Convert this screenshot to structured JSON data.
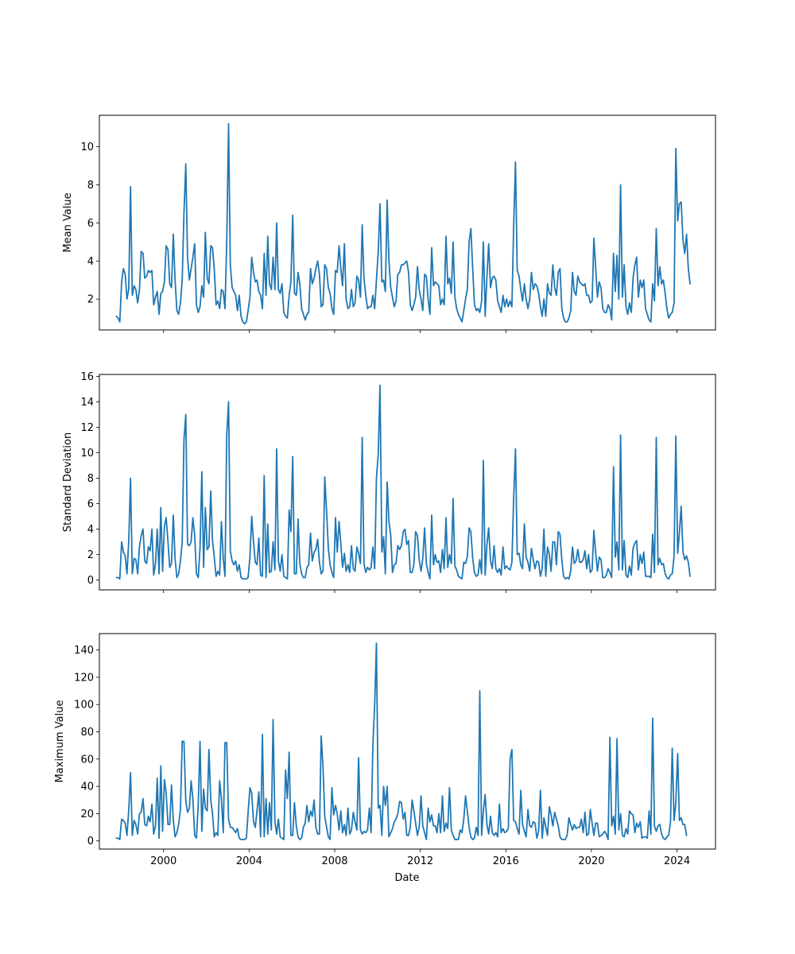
{
  "figure": {
    "xlabel": "Date",
    "x_tick_labels": [
      "2000",
      "2004",
      "2008",
      "2012",
      "2016",
      "2020",
      "2024"
    ],
    "line_color": "#1f77b4"
  },
  "chart_data": [
    {
      "type": "line",
      "ylabel": "Mean Value",
      "ylim": [
        0.38,
        11.65
      ],
      "yticks": [
        2,
        4,
        6,
        8,
        10
      ],
      "xlim": [
        1997.0,
        2025.8
      ],
      "x_tick_values": [
        2000,
        2004,
        2008,
        2012,
        2016,
        2020,
        2024
      ],
      "grid": false,
      "x_start": 1997.79,
      "x_step": 0.0833,
      "values": [
        1.1,
        1.0,
        0.8,
        2.9,
        3.6,
        3.3,
        2.0,
        2.5,
        7.9,
        2.2,
        2.7,
        2.5,
        1.8,
        2.5,
        4.5,
        4.4,
        3.1,
        3.2,
        3.5,
        3.4,
        3.5,
        1.7,
        2.1,
        2.4,
        1.2,
        2.3,
        2.4,
        2.9,
        4.8,
        4.6,
        2.8,
        2.6,
        5.4,
        3.0,
        1.4,
        1.2,
        1.8,
        3.0,
        6.5,
        9.1,
        4.2,
        3.0,
        3.6,
        4.2,
        4.9,
        1.7,
        1.3,
        1.6,
        2.7,
        2.1,
        5.5,
        3.1,
        2.8,
        4.8,
        4.7,
        3.6,
        1.7,
        1.9,
        1.5,
        2.5,
        2.4,
        1.5,
        5.0,
        11.2,
        3.8,
        2.6,
        2.4,
        2.2,
        1.4,
        2.2,
        1.1,
        0.8,
        0.7,
        0.8,
        1.4,
        2.1,
        4.2,
        3.4,
        2.9,
        3.0,
        2.4,
        2.2,
        1.5,
        4.4,
        2.2,
        5.3,
        2.8,
        2.5,
        4.2,
        2.5,
        6.0,
        2.5,
        2.3,
        2.8,
        1.3,
        1.1,
        1.0,
        2.2,
        2.9,
        6.4,
        2.3,
        2.2,
        3.4,
        2.8,
        1.5,
        1.2,
        0.9,
        1.2,
        1.3,
        3.6,
        2.8,
        3.1,
        3.6,
        4.0,
        3.3,
        1.6,
        1.7,
        3.8,
        3.6,
        2.6,
        2.3,
        1.5,
        1.2,
        3.5,
        3.4,
        4.8,
        3.6,
        2.7,
        4.9,
        2.0,
        1.5,
        1.6,
        2.5,
        1.6,
        1.8,
        3.2,
        3.0,
        2.1,
        5.9,
        3.1,
        2.2,
        1.5,
        1.6,
        1.6,
        2.2,
        1.5,
        3.0,
        4.5,
        7.0,
        2.9,
        3.0,
        2.4,
        7.2,
        4.0,
        2.6,
        2.1,
        1.6,
        1.9,
        3.3,
        3.4,
        3.8,
        3.8,
        3.9,
        4.0,
        3.4,
        1.7,
        1.4,
        1.7,
        2.1,
        3.7,
        2.5,
        2.0,
        1.4,
        3.3,
        3.2,
        2.0,
        1.2,
        4.7,
        2.7,
        2.9,
        2.8,
        2.7,
        1.7,
        2.0,
        1.7,
        5.3,
        2.8,
        3.1,
        2.3,
        5.0,
        2.1,
        1.5,
        1.2,
        1.0,
        0.8,
        1.4,
        2.0,
        2.5,
        5.0,
        5.7,
        3.6,
        1.7,
        1.4,
        1.5,
        1.3,
        1.9,
        5.0,
        1.1,
        3.2,
        4.9,
        2.6,
        3.1,
        3.2,
        3.0,
        1.9,
        1.6,
        1.3,
        2.2,
        1.6,
        2.0,
        1.6,
        1.9,
        1.6,
        5.8,
        9.2,
        3.5,
        3.2,
        2.5,
        1.9,
        2.8,
        2.0,
        1.5,
        2.0,
        3.4,
        2.5,
        2.8,
        2.7,
        2.3,
        1.6,
        1.1,
        2.0,
        1.1,
        2.8,
        2.3,
        2.2,
        3.8,
        2.6,
        2.2,
        3.4,
        3.6,
        1.5,
        1.0,
        0.8,
        0.8,
        1.0,
        1.4,
        3.4,
        2.4,
        2.2,
        3.2,
        2.9,
        2.8,
        2.7,
        2.8,
        2.2,
        2.2,
        1.8,
        1.9,
        5.2,
        3.7,
        2.1,
        2.9,
        2.6,
        1.5,
        1.3,
        1.3,
        1.7,
        1.5,
        0.9,
        4.4,
        2.4,
        4.3,
        2.0,
        8.0,
        2.1,
        3.8,
        1.6,
        1.2,
        1.8,
        1.3,
        3.1,
        3.8,
        4.2,
        2.1,
        3.0,
        2.6,
        3.0,
        1.5,
        1.2,
        0.9,
        0.8,
        2.8,
        1.9,
        5.7,
        2.7,
        3.7,
        2.8,
        3.0,
        2.3,
        1.5,
        1.0,
        1.2,
        1.3,
        1.8,
        9.9,
        6.1,
        7.0,
        7.1,
        5.1,
        4.4,
        5.4,
        3.6,
        2.8
      ]
    },
    {
      "type": "line",
      "ylabel": "Standard Deviation",
      "ylim": [
        -0.77,
        16.15
      ],
      "yticks": [
        0,
        2,
        4,
        6,
        8,
        10,
        12,
        14,
        16
      ],
      "xlim": [
        1997.0,
        2025.8
      ],
      "x_tick_values": [
        2000,
        2004,
        2008,
        2012,
        2016,
        2020,
        2024
      ],
      "grid": false,
      "x_start": 1997.79,
      "x_step": 0.0833,
      "values": [
        0.2,
        0.2,
        0.1,
        3.0,
        2.2,
        1.9,
        0.5,
        3.0,
        8.0,
        0.5,
        1.7,
        1.6,
        0.5,
        2.6,
        3.5,
        4.0,
        1.5,
        1.3,
        2.6,
        2.3,
        4.0,
        0.4,
        1.3,
        4.0,
        0.5,
        5.7,
        0.7,
        4.2,
        4.9,
        3.0,
        1.0,
        1.3,
        5.1,
        1.7,
        0.2,
        0.5,
        1.5,
        3.0,
        11.0,
        13.0,
        2.8,
        2.7,
        3.0,
        4.9,
        3.5,
        0.5,
        0.2,
        2.5,
        8.5,
        1.0,
        5.7,
        2.4,
        2.6,
        7.0,
        3.1,
        1.8,
        0.3,
        0.7,
        0.4,
        4.6,
        1.7,
        0.3,
        11.4,
        14.0,
        2.3,
        1.5,
        1.2,
        1.5,
        0.7,
        1.2,
        0.2,
        0.1,
        0.1,
        0.1,
        0.2,
        1.8,
        5.0,
        3.0,
        1.4,
        1.2,
        3.3,
        0.4,
        0.3,
        8.2,
        0.2,
        4.4,
        0.6,
        0.7,
        3.0,
        0.8,
        10.3,
        1.5,
        0.7,
        2.0,
        0.3,
        0.2,
        0.1,
        5.5,
        3.8,
        9.7,
        0.5,
        0.5,
        4.8,
        1.3,
        0.5,
        0.2,
        0.2,
        1.0,
        1.2,
        3.7,
        1.5,
        2.2,
        2.4,
        3.2,
        1.4,
        0.5,
        0.7,
        8.1,
        5.4,
        2.5,
        1.2,
        0.6,
        0.2,
        4.9,
        2.2,
        4.6,
        2.9,
        1.0,
        2.1,
        0.7,
        1.2,
        0.6,
        2.7,
        0.9,
        0.7,
        2.6,
        2.1,
        1.3,
        11.2,
        1.3,
        0.6,
        1.0,
        0.8,
        1.0,
        2.6,
        0.9,
        8.0,
        9.9,
        15.3,
        2.2,
        3.4,
        0.5,
        7.7,
        4.6,
        3.5,
        0.6,
        1.2,
        1.3,
        2.7,
        2.4,
        2.7,
        3.8,
        4.0,
        2.8,
        3.1,
        0.6,
        0.6,
        1.2,
        3.8,
        3.5,
        1.6,
        0.7,
        1.7,
        4.1,
        1.3,
        0.6,
        0.1,
        5.1,
        1.2,
        2.0,
        1.4,
        1.5,
        0.6,
        2.4,
        0.9,
        4.9,
        1.0,
        2.0,
        1.3,
        6.4,
        1.1,
        0.8,
        0.3,
        0.2,
        0.1,
        1.4,
        1.3,
        1.8,
        4.1,
        3.8,
        1.7,
        0.6,
        0.3,
        0.4,
        1.6,
        0.5,
        9.4,
        0.4,
        2.8,
        4.1,
        1.5,
        0.9,
        2.7,
        0.9,
        0.6,
        0.9,
        0.4,
        2.6,
        0.9,
        1.1,
        0.9,
        0.8,
        1.4,
        6.4,
        10.3,
        2.0,
        2.1,
        1.2,
        0.9,
        4.4,
        1.8,
        1.4,
        0.7,
        2.5,
        1.6,
        0.9,
        1.5,
        1.4,
        0.3,
        0.9,
        4.0,
        0.3,
        2.6,
        2.0,
        0.7,
        3.0,
        3.0,
        1.2,
        3.8,
        3.6,
        1.6,
        0.3,
        0.1,
        0.2,
        0.1,
        0.7,
        2.6,
        1.3,
        1.5,
        2.4,
        1.4,
        1.4,
        1.6,
        2.3,
        0.9,
        2.0,
        0.6,
        0.8,
        3.9,
        2.2,
        0.7,
        1.8,
        1.6,
        0.2,
        0.2,
        0.4,
        0.9,
        0.6,
        0.2,
        8.9,
        1.8,
        3.0,
        0.8,
        11.4,
        0.8,
        3.1,
        0.4,
        0.2,
        1.1,
        0.4,
        2.5,
        2.9,
        3.1,
        0.8,
        2.0,
        1.3,
        2.2,
        0.3,
        0.3,
        0.3,
        0.2,
        3.6,
        0.6,
        11.2,
        1.2,
        1.7,
        1.2,
        1.3,
        0.5,
        0.2,
        0.1,
        0.4,
        0.5,
        1.9,
        11.3,
        2.1,
        3.7,
        5.8,
        2.2,
        1.6,
        1.9,
        1.4,
        0.3
      ]
    },
    {
      "type": "line",
      "ylabel": "Maximum Value",
      "ylim": [
        -6.0,
        152.0
      ],
      "yticks": [
        0,
        20,
        40,
        60,
        80,
        100,
        120,
        140
      ],
      "xlim": [
        1997.0,
        2025.8
      ],
      "x_tick_values": [
        2000,
        2004,
        2008,
        2012,
        2016,
        2020,
        2024
      ],
      "grid": false,
      "x_start": 1997.79,
      "x_step": 0.0833,
      "values": [
        2,
        2,
        1,
        16,
        15,
        13,
        4,
        22,
        50,
        4,
        15,
        12,
        5,
        20,
        21,
        31,
        12,
        11,
        18,
        14,
        27,
        5,
        11,
        46,
        2,
        55,
        7,
        45,
        35,
        12,
        12,
        41,
        15,
        3,
        6,
        12,
        23,
        73,
        73,
        29,
        21,
        24,
        44,
        31,
        4,
        2,
        27,
        73,
        7,
        38,
        24,
        22,
        67,
        30,
        20,
        3,
        6,
        4,
        44,
        31,
        6,
        72,
        72,
        16,
        10,
        10,
        8,
        6,
        9,
        2,
        1,
        1,
        1,
        2,
        21,
        39,
        35,
        14,
        10,
        22,
        36,
        3,
        78,
        3,
        31,
        5,
        28,
        8,
        89,
        14,
        5,
        16,
        3,
        2,
        1,
        52,
        31,
        65,
        4,
        4,
        28,
        11,
        3,
        1,
        2,
        10,
        13,
        26,
        14,
        22,
        18,
        30,
        10,
        5,
        5,
        77,
        54,
        18,
        10,
        3,
        1,
        39,
        19,
        26,
        20,
        8,
        22,
        6,
        12,
        4,
        24,
        5,
        8,
        21,
        14,
        8,
        61,
        8,
        5,
        7,
        6,
        8,
        24,
        6,
        70,
        100,
        145,
        24,
        26,
        4,
        40,
        26,
        40,
        3,
        6,
        9,
        14,
        16,
        20,
        29,
        28,
        16,
        21,
        4,
        4,
        10,
        30,
        22,
        13,
        4,
        10,
        33,
        11,
        6,
        1,
        24,
        14,
        19,
        11,
        11,
        6,
        20,
        6,
        33,
        7,
        13,
        9,
        39,
        8,
        4,
        1,
        1,
        1,
        8,
        6,
        16,
        33,
        22,
        10,
        3,
        1,
        2,
        10,
        4,
        110,
        4,
        22,
        34,
        12,
        5,
        18,
        6,
        4,
        6,
        3,
        27,
        6,
        9,
        6,
        7,
        9,
        60,
        67,
        15,
        14,
        9,
        5,
        37,
        12,
        7,
        3,
        23,
        11,
        10,
        14,
        13,
        2,
        7,
        37,
        2,
        17,
        10,
        4,
        25,
        19,
        11,
        21,
        16,
        11,
        3,
        1,
        1,
        1,
        4,
        17,
        12,
        8,
        12,
        9,
        10,
        10,
        16,
        6,
        21,
        4,
        5,
        23,
        13,
        4,
        13,
        13,
        3,
        4,
        5,
        7,
        5,
        1,
        76,
        11,
        18,
        5,
        75,
        8,
        20,
        4,
        3,
        9,
        5,
        22,
        20,
        19,
        6,
        13,
        10,
        14,
        2,
        3,
        3,
        2,
        22,
        5,
        90,
        11,
        7,
        11,
        12,
        5,
        2,
        1,
        3,
        4,
        14,
        68,
        15,
        28,
        64,
        15,
        17,
        12,
        12,
        4
      ]
    }
  ]
}
